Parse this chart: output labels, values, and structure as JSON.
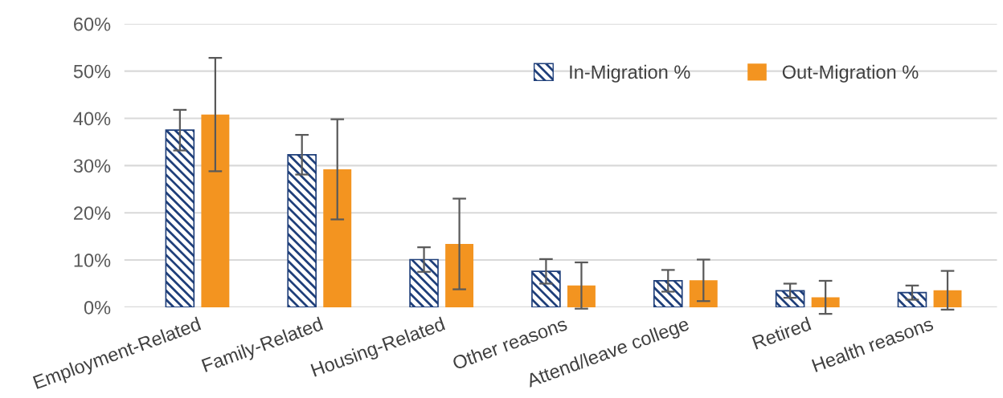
{
  "chart_data": {
    "type": "bar",
    "categories": [
      "Employment-Related",
      "Family-Related",
      "Housing-Related",
      "Other reasons",
      "Attend/leave college",
      "Retired",
      "Health reasons"
    ],
    "series": [
      {
        "name": "In-Migration %",
        "color": "#1f3f7a",
        "values": [
          37.5,
          32.3,
          10.1,
          7.6,
          5.6,
          3.5,
          3.1
        ],
        "errors": [
          4.3,
          4.2,
          2.6,
          2.6,
          2.3,
          1.5,
          1.5
        ]
      },
      {
        "name": "Out-Migration %",
        "color": "#f39420",
        "values": [
          40.8,
          29.2,
          13.4,
          4.6,
          5.7,
          2.1,
          3.6
        ],
        "errors": [
          12.0,
          10.6,
          9.6,
          4.9,
          4.4,
          3.5,
          4.1
        ]
      }
    ],
    "ylim": [
      0,
      60
    ],
    "yticks": [
      {
        "value": 0,
        "label": "0%"
      },
      {
        "value": 10,
        "label": "10%"
      },
      {
        "value": 20,
        "label": "20%"
      },
      {
        "value": 30,
        "label": "30%"
      },
      {
        "value": 40,
        "label": "40%"
      },
      {
        "value": 50,
        "label": "50%"
      },
      {
        "value": 60,
        "label": "60%"
      }
    ],
    "grid": "y",
    "legend": "top right"
  }
}
